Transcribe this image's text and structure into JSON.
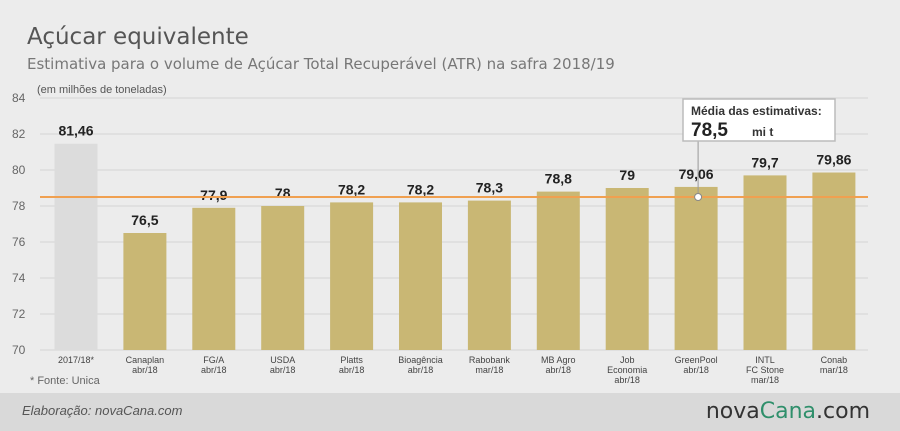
{
  "chart_data": {
    "type": "bar",
    "title": "Açúcar equivalente",
    "subtitle": "Estimativa para o volume de Açúcar Total Recuperável (ATR) na safra 2018/19",
    "unit_note": "(em milhões de toneladas)",
    "ylim": [
      70,
      84
    ],
    "yticks": [
      70,
      72,
      74,
      76,
      78,
      80,
      82,
      84
    ],
    "categories": [
      [
        "2017/18*"
      ],
      [
        "Canaplan",
        "abr/18"
      ],
      [
        "FG/A",
        "abr/18"
      ],
      [
        "USDA",
        "abr/18"
      ],
      [
        "Platts",
        "abr/18"
      ],
      [
        "Bioagência",
        "abr/18"
      ],
      [
        "Rabobank",
        "mar/18"
      ],
      [
        "MB Agro",
        "abr/18"
      ],
      [
        "Job",
        "Economia",
        "abr/18"
      ],
      [
        "GreenPool",
        "abr/18"
      ],
      [
        "INTL",
        "FC Stone",
        "mar/18"
      ],
      [
        "Conab",
        "mar/18"
      ]
    ],
    "values": [
      81.46,
      76.5,
      77.9,
      78,
      78.2,
      78.2,
      78.3,
      78.8,
      79,
      79.06,
      79.7,
      79.86
    ],
    "value_labels": [
      "81,46",
      "76,5",
      "77,9",
      "78",
      "78,2",
      "78,2",
      "78,3",
      "78,8",
      "79",
      "79,06",
      "79,7",
      "79,86"
    ],
    "average": {
      "value": 78.5,
      "label": "Média das estimativas:",
      "value_label": "78,5",
      "unit": "mi t"
    },
    "source_note": "* Fonte: Unica",
    "colors": {
      "bar": "#c9b774",
      "first_bar": "#dcdcdc",
      "avg_line": "#f0a050",
      "grid": "#d4d4d4",
      "axis_text": "#666666"
    }
  },
  "footer": {
    "credit": "Elaboração: novaCana.com",
    "brand_part1": "nova",
    "brand_part2": "Cana",
    "brand_part3": ".com"
  }
}
